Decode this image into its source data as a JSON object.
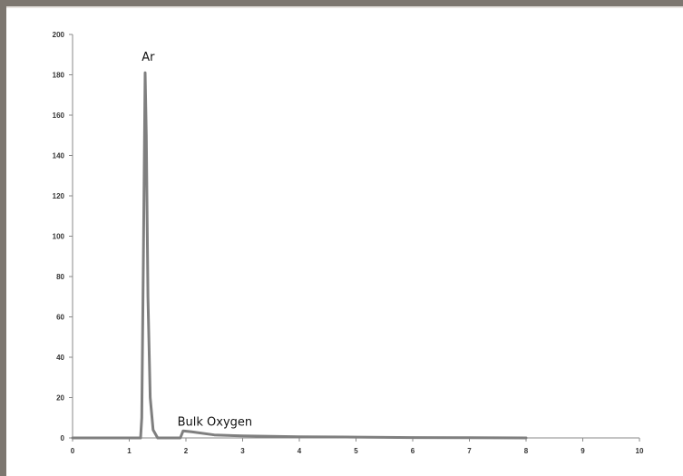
{
  "chart_data": {
    "type": "line",
    "title": "",
    "xlabel": "",
    "ylabel": "",
    "xlim": [
      0,
      10
    ],
    "ylim": [
      0,
      200
    ],
    "xticks": [
      "0",
      "1",
      "2",
      "3",
      "4",
      "5",
      "6",
      "7",
      "8",
      "9",
      "10"
    ],
    "yticks": [
      "0",
      "20",
      "40",
      "60",
      "80",
      "100",
      "120",
      "140",
      "160",
      "180",
      "200"
    ],
    "grid": false,
    "legend": "none",
    "series": [
      {
        "color": "#7f7f7f",
        "x": [
          0,
          1.2,
          1.22,
          1.25,
          1.28,
          1.3,
          1.33,
          1.37,
          1.42,
          1.5,
          1.9,
          1.95,
          2.1,
          2.5,
          3,
          4,
          5,
          6,
          7,
          8
        ],
        "y": [
          0,
          0,
          10,
          90,
          181,
          150,
          70,
          20,
          4,
          0,
          0,
          3.5,
          3,
          1.5,
          1,
          0.6,
          0.4,
          0.2,
          0.1,
          0
        ]
      }
    ],
    "annotations": [
      {
        "text": "Ar",
        "x": 1.22,
        "y": 187
      },
      {
        "text": "Bulk Oxygen",
        "x": 1.85,
        "y": 6
      }
    ]
  }
}
